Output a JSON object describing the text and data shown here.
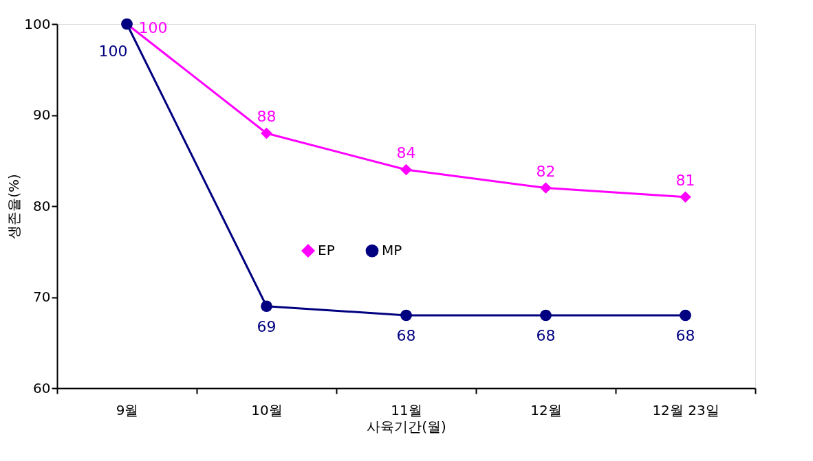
{
  "chart_data": {
    "type": "line",
    "xlabel": "사육기간(월)",
    "ylabel": "생존율(%)",
    "categories": [
      "9월",
      "10월",
      "11월",
      "12월",
      "12월 23일"
    ],
    "series": [
      {
        "name": "EP",
        "color": "#ff00ff",
        "marker": "diamond",
        "values": [
          100,
          88,
          84,
          82,
          81
        ]
      },
      {
        "name": "MP",
        "color": "#000080",
        "marker": "circle",
        "values": [
          100,
          69,
          68,
          68,
          68
        ]
      }
    ],
    "ylim": [
      60,
      100
    ],
    "yticks": [
      60,
      70,
      80,
      90,
      100
    ],
    "grid": false,
    "legend": "center",
    "data_labels": true,
    "line_style": "solid"
  }
}
